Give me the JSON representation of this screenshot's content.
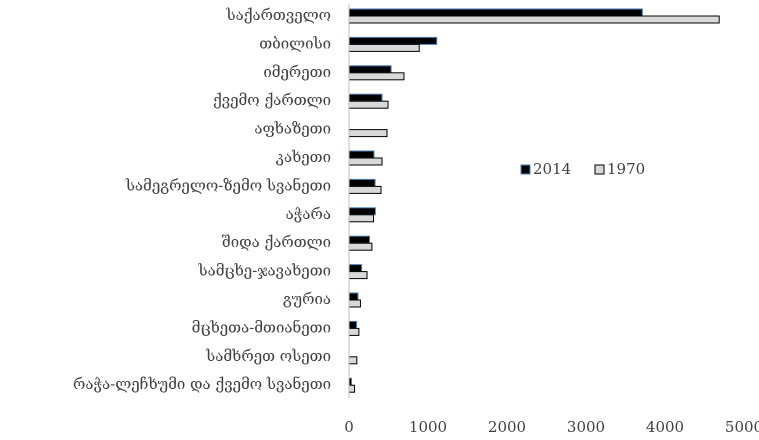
{
  "chart_data": {
    "type": "hbar",
    "categories": [
      "საქართველო",
      "თბილისი",
      "იმერეთი",
      "ქვემო ქართლი",
      "აფხაზეთი",
      "კახეთი",
      "სამეგრელო-ზემო სვანეთი",
      "აჭარა",
      "შიდა ქართლი",
      "სამცხე-ჯავახეთი",
      "გურია",
      "მცხეთა-მთიანეთი",
      "სამხრეთ ოსეთი",
      "რაჭა-ლეჩხუმი და ქვემო სვანეთი"
    ],
    "series": [
      {
        "name": "2014",
        "color": "#000000",
        "edge": "#4a7ebb",
        "values": [
          3713,
          1110,
          533,
          418,
          0,
          316,
          330,
          334,
          260,
          160,
          113,
          95,
          0,
          32
        ]
      },
      {
        "name": "1970",
        "color": "#d9d9d9",
        "edge": "#000000",
        "values": [
          4686,
          889,
          696,
          494,
          481,
          418,
          405,
          310,
          290,
          228,
          145,
          125,
          99,
          70
        ]
      }
    ],
    "xlim": [
      0,
      5000
    ],
    "xticks": [
      0,
      1000,
      2000,
      3000,
      4000,
      5000
    ],
    "legend": "right"
  }
}
